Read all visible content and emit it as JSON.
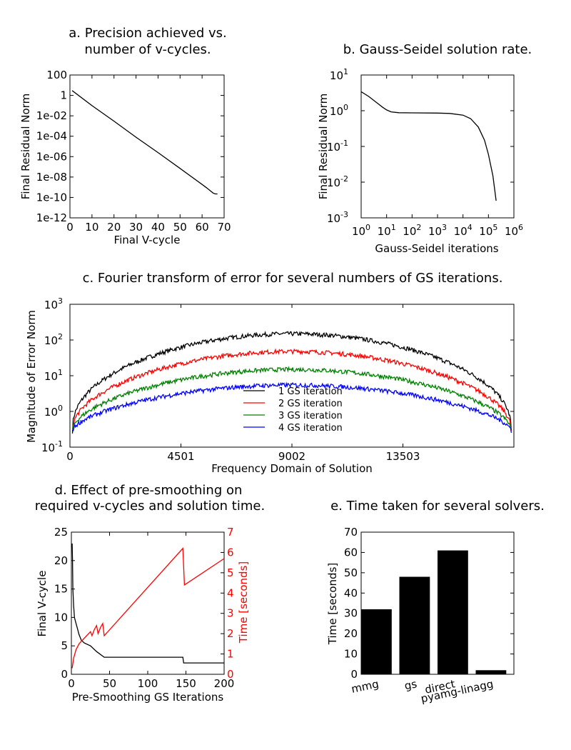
{
  "chart_data": [
    {
      "id": "a",
      "type": "line",
      "title": "a. Precision achieved vs. number of v-cycles.",
      "xlabel": "Final V-cycle",
      "ylabel": "Final Residual Norm",
      "xlim": [
        0,
        70
      ],
      "ylim": [
        1e-12,
        100
      ],
      "yscale": "log",
      "xticks": [
        "0",
        "10",
        "20",
        "30",
        "40",
        "50",
        "60",
        "70"
      ],
      "yticks": [
        "100",
        "1",
        "1e-02",
        "1e-04",
        "1e-06",
        "1e-08",
        "1e-10",
        "1e-12"
      ],
      "series": [
        {
          "color": "#000000",
          "x": [
            1,
            10,
            20,
            30,
            40,
            50,
            60,
            62,
            64,
            65,
            66,
            67
          ],
          "y": [
            3.0,
            0.1,
            0.003,
            8e-05,
            2.5e-06,
            7e-08,
            1.9e-09,
            9e-10,
            4e-10,
            2.7e-10,
            2.2e-10,
            2.2e-10
          ]
        }
      ]
    },
    {
      "id": "b",
      "type": "line",
      "title": "b. Gauss-Seidel solution rate.",
      "xlabel": "Gauss-Seidel iterations",
      "ylabel": "Final Residual Norm",
      "xscale": "log",
      "yscale": "log",
      "xlim": [
        1,
        1000000
      ],
      "ylim": [
        0.001,
        10
      ],
      "xticks": [
        {
          "base": "10",
          "exp": "0"
        },
        {
          "base": "10",
          "exp": "1"
        },
        {
          "base": "10",
          "exp": "2"
        },
        {
          "base": "10",
          "exp": "3"
        },
        {
          "base": "10",
          "exp": "4"
        },
        {
          "base": "10",
          "exp": "5"
        },
        {
          "base": "10",
          "exp": "6"
        }
      ],
      "yticks": [
        {
          "base": "10",
          "exp": "1"
        },
        {
          "base": "10",
          "exp": "0"
        },
        {
          "base": "10",
          "exp": "-1"
        },
        {
          "base": "10",
          "exp": "-2"
        },
        {
          "base": "10",
          "exp": "-3"
        }
      ],
      "series": [
        {
          "color": "#000000",
          "x": [
            1,
            2,
            4,
            7,
            10,
            15,
            30,
            100,
            1000,
            3000,
            10000,
            20000,
            40000,
            70000,
            100000,
            150000,
            200000
          ],
          "y": [
            3.4,
            2.5,
            1.7,
            1.25,
            1.05,
            0.93,
            0.88,
            0.87,
            0.86,
            0.84,
            0.75,
            0.6,
            0.35,
            0.15,
            0.06,
            0.015,
            0.003
          ]
        }
      ]
    },
    {
      "id": "c",
      "type": "line",
      "title": "c. Fourier transform of error for several numbers of GS iterations.",
      "xlabel": "Frequency Domain of Solution",
      "ylabel": "Magnitude of Error Norm",
      "yscale": "log",
      "xlim": [
        0,
        18004
      ],
      "ylim": [
        0.1,
        1000
      ],
      "xticks": [
        0,
        4501,
        9002,
        13503
      ],
      "xtick_labels": [
        "0",
        "4501",
        "9002",
        "13503"
      ],
      "yticks": [
        {
          "base": "10",
          "exp": "3"
        },
        {
          "base": "10",
          "exp": "2"
        },
        {
          "base": "10",
          "exp": "1"
        },
        {
          "base": "10",
          "exp": "0"
        },
        {
          "base": "10",
          "exp": "-1"
        }
      ],
      "legend": "center",
      "series": [
        {
          "name": "1 GS iteration",
          "color": "#000000",
          "peak": 150
        },
        {
          "name": "2 GS iteration",
          "color": "#ff0000",
          "peak": 48
        },
        {
          "name": "3 GS iteration",
          "color": "#008000",
          "peak": 15
        },
        {
          "name": "4 GS iteration",
          "color": "#0000ff",
          "peak": 5.5
        }
      ]
    },
    {
      "id": "d",
      "type": "line",
      "title": "d. Effect of pre-smoothing on required v-cycles and solution time.",
      "xlabel": "Pre-Smoothing GS Iterations",
      "ylabel": "Final V-cycle",
      "ylabel_right": "Time [seconds]",
      "xlim": [
        0,
        200
      ],
      "ylim": [
        0,
        25
      ],
      "ylim_right": [
        0,
        7
      ],
      "xticks": [
        "0",
        "50",
        "100",
        "150",
        "200"
      ],
      "yticks": [
        "25",
        "20",
        "15",
        "10",
        "5",
        "0"
      ],
      "yticks_right": [
        "7",
        "6",
        "5",
        "4",
        "3",
        "2",
        "1",
        "0"
      ],
      "series": [
        {
          "color": "#000000",
          "axis": "left",
          "x": [
            1,
            1.5,
            2,
            3,
            4,
            6,
            8,
            10,
            13,
            17,
            25,
            33,
            43,
            146,
            147,
            200
          ],
          "y": [
            23,
            20,
            15,
            12,
            10,
            9,
            8,
            7,
            6,
            5.5,
            5,
            4,
            3,
            3,
            2,
            2
          ]
        },
        {
          "color": "#ff0000",
          "axis": "right",
          "x": [
            1,
            3,
            6,
            10,
            15,
            20,
            25,
            27,
            30,
            33,
            35,
            38,
            41,
            43,
            146,
            148,
            200
          ],
          "y": [
            0.3,
            0.8,
            1.2,
            1.5,
            1.7,
            1.9,
            2.1,
            1.9,
            2.2,
            2.4,
            2.0,
            2.3,
            2.5,
            1.9,
            6.2,
            4.4,
            5.7
          ]
        }
      ]
    },
    {
      "id": "e",
      "type": "bar",
      "title": "e. Time taken for several solvers.",
      "ylabel": "Time [seconds]",
      "ylim": [
        0,
        70
      ],
      "yticks": [
        "70",
        "60",
        "50",
        "40",
        "30",
        "20",
        "10",
        "0"
      ],
      "categories": [
        "mmg",
        "gs",
        "direct",
        "pyamg-linagg"
      ],
      "values": [
        32,
        48,
        61,
        2
      ],
      "color": "#000000"
    }
  ]
}
